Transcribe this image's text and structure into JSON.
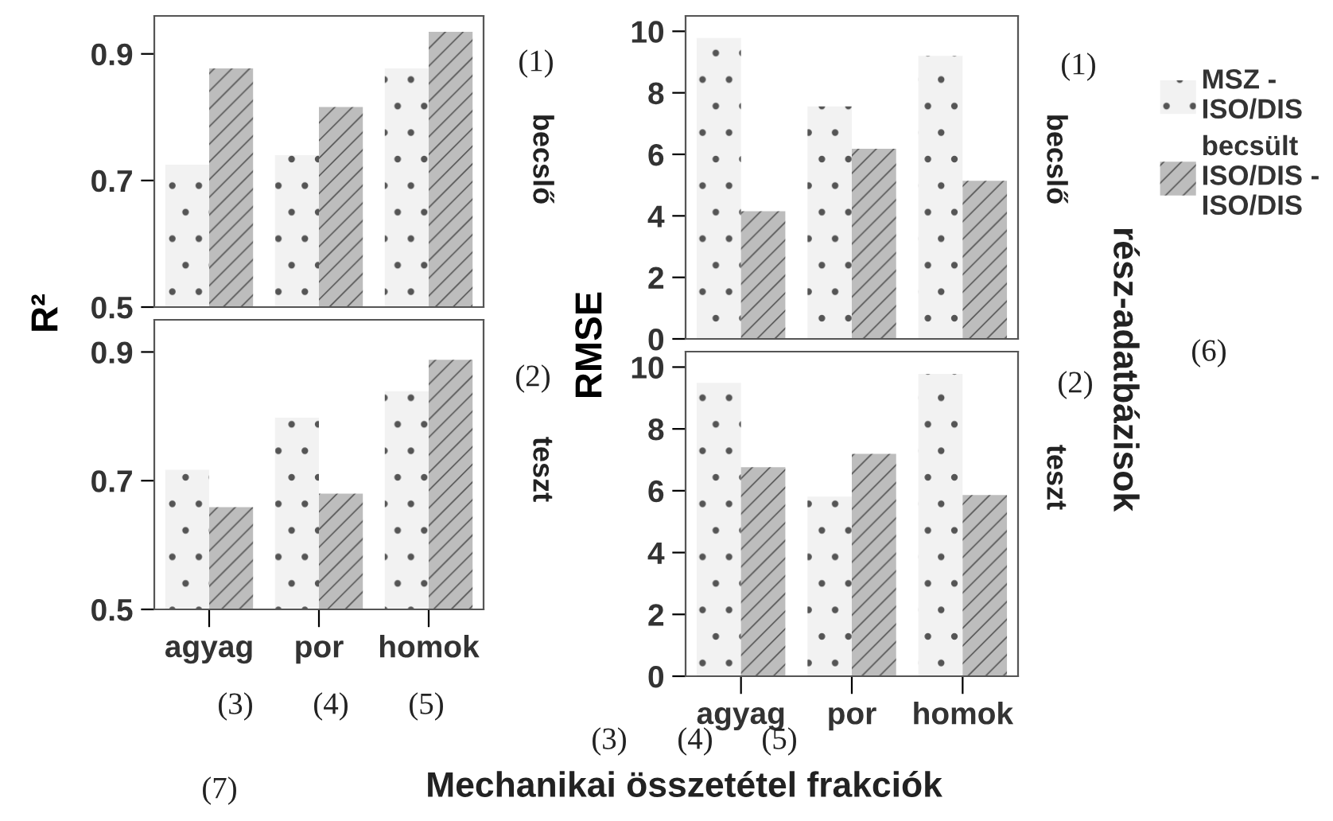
{
  "chart_data": [
    {
      "type": "bar",
      "ylabel": "R²",
      "categories": [
        null,
        null,
        null
      ],
      "ylim": [
        0.5,
        0.96
      ],
      "yticks": [
        0.5,
        0.7,
        0.9
      ],
      "tick_labels": "y",
      "grid": false,
      "legend": "right",
      "series": [
        {
          "name": "MSZ - ISO/DIS",
          "color": "#f2f2f2",
          "values": [
            0.725,
            0.74,
            0.877
          ]
        },
        {
          "name": "becsült ISO/DIS - ISO/DIS",
          "color": "#bdbdbd",
          "values": [
            0.877,
            0.816,
            0.935
          ]
        }
      ],
      "annotations": [
        "(1)",
        "becslő"
      ]
    },
    {
      "type": "bar",
      "categories": [
        "agyag",
        "por",
        "homok"
      ],
      "ylim": [
        0.5,
        0.95
      ],
      "yticks": [
        0.5,
        0.7,
        0.9
      ],
      "grid": false,
      "series": [
        {
          "color": "#f2f2f2",
          "values": [
            0.717,
            0.798,
            0.839
          ]
        },
        {
          "color": "#bdbdbd",
          "values": [
            0.659,
            0.68,
            0.888
          ]
        }
      ],
      "annotations": [
        "(2)",
        "teszt",
        "(3)",
        "(4)",
        "(5)"
      ]
    },
    {
      "type": "bar",
      "ylabel": "RMSE",
      "categories": [
        null,
        null,
        null
      ],
      "ylim": [
        0,
        10.5
      ],
      "yticks": [
        0,
        2,
        4,
        6,
        8,
        10
      ],
      "tick_labels": "y",
      "grid": false,
      "series": [
        {
          "color": "#f2f2f2",
          "values": [
            9.78,
            7.56,
            9.2
          ]
        },
        {
          "color": "#bdbdbd",
          "values": [
            4.15,
            6.18,
            5.14
          ]
        }
      ],
      "annotations": [
        "(1)",
        "becslő",
        "rész-adatbázisok",
        "(6)"
      ]
    },
    {
      "type": "bar",
      "xlabel": "Mechanikai összetétel frakciók",
      "categories": [
        "agyag",
        "por",
        "homok"
      ],
      "ylim": [
        0,
        10.5
      ],
      "yticks": [
        0,
        2,
        4,
        6,
        8,
        10
      ],
      "grid": false,
      "series": [
        {
          "color": "#f2f2f2",
          "values": [
            9.49,
            5.81,
            9.78
          ]
        },
        {
          "color": "#bdbdbd",
          "values": [
            6.76,
            7.19,
            5.86
          ]
        }
      ],
      "annotations": [
        "(2)",
        "teszt",
        "(3)",
        "(4)",
        "(5)",
        "(7)"
      ]
    }
  ]
}
